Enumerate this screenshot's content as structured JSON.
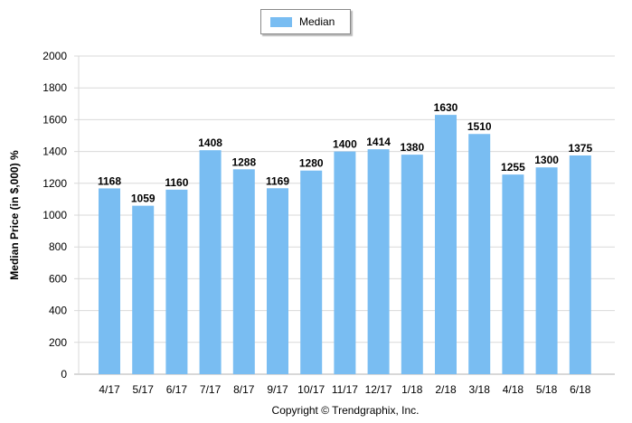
{
  "chart_data": {
    "type": "bar",
    "title": "",
    "xlabel": "",
    "ylabel": "Median Price (in $,000) %",
    "ylim": [
      0,
      2000
    ],
    "yticks": [
      0,
      200,
      400,
      600,
      800,
      1000,
      1200,
      1400,
      1600,
      1800,
      2000
    ],
    "grid": true,
    "legend_position": "top-center",
    "categories": [
      "4/17",
      "5/17",
      "6/17",
      "7/17",
      "8/17",
      "9/17",
      "10/17",
      "11/17",
      "12/17",
      "1/18",
      "2/18",
      "3/18",
      "4/18",
      "5/18",
      "6/18"
    ],
    "series": [
      {
        "name": "Median",
        "color": "#79bdf2",
        "values": [
          1168,
          1059,
          1160,
          1408,
          1288,
          1169,
          1280,
          1400,
          1414,
          1380,
          1630,
          1510,
          1255,
          1300,
          1375
        ]
      }
    ]
  },
  "footer": {
    "copyright": "Copyright © Trendgraphix, Inc."
  }
}
